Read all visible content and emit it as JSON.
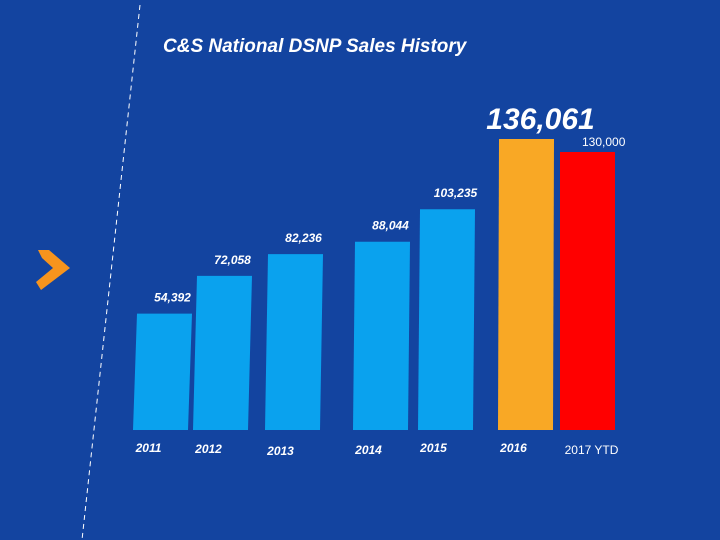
{
  "slide": {
    "title": "C&S National DSNP Sales History",
    "background_color": "#1344a0",
    "logo_icon": "chevron-right-icon",
    "logo_color": "#f7941d"
  },
  "chart_data": {
    "type": "bar",
    "title": "C&S National DSNP Sales History",
    "categories": [
      "2011",
      "2012",
      "2013",
      "2014",
      "2015",
      "2016",
      "2017 YTD"
    ],
    "values": [
      54392,
      72058,
      82236,
      88044,
      103235,
      136061,
      130000
    ],
    "data_labels": [
      "54,392",
      "72,058",
      "82,236",
      "88,044",
      "103,235",
      "136,061",
      "130,000"
    ],
    "colors": [
      "#0aa2ee",
      "#0aa2ee",
      "#0aa2ee",
      "#0aa2ee",
      "#0aa2ee",
      "#f9a825",
      "#ff0000"
    ],
    "xlabel": "",
    "ylabel": "",
    "ylim": [
      0,
      140000
    ],
    "grid": false,
    "legend": "none"
  }
}
